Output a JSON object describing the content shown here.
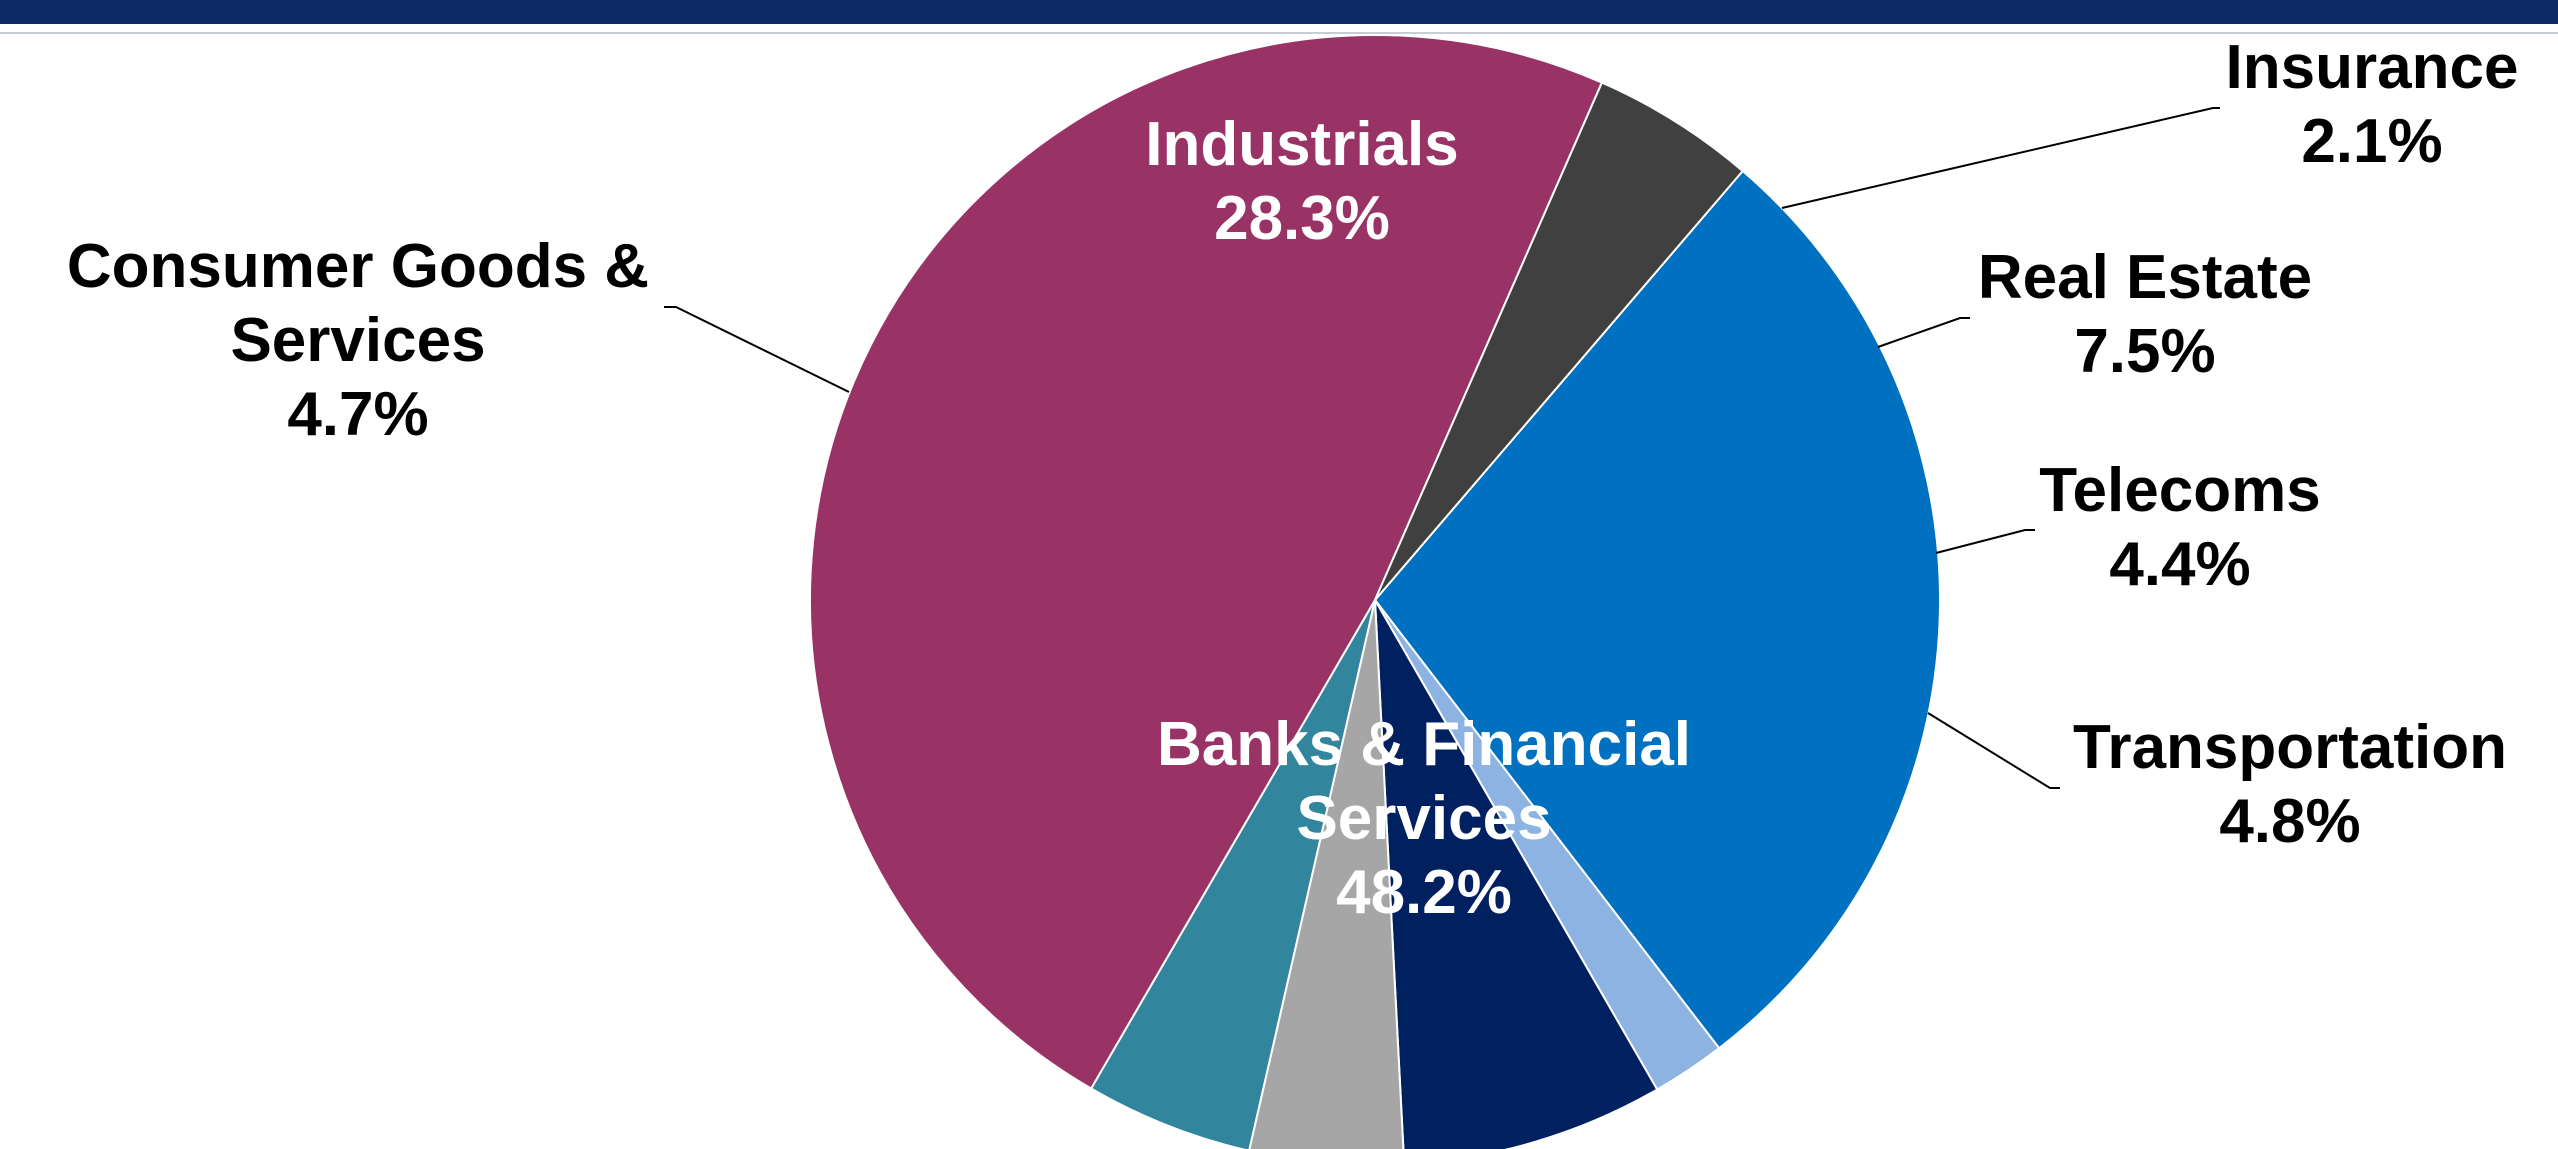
{
  "chart_data": {
    "type": "pie",
    "title": "",
    "slices": [
      {
        "label_lines": [
          "Industrials"
        ],
        "value": 28.3,
        "value_label": "28.3%",
        "color": "#0070c0"
      },
      {
        "label_lines": [
          "Insurance"
        ],
        "value": 2.1,
        "value_label": "2.1%",
        "color": "#8db3e2"
      },
      {
        "label_lines": [
          "Real Estate"
        ],
        "value": 7.5,
        "value_label": "7.5%",
        "color": "#002060"
      },
      {
        "label_lines": [
          "Telecoms"
        ],
        "value": 4.4,
        "value_label": "4.4%",
        "color": "#a6a6a6"
      },
      {
        "label_lines": [
          "Transportation"
        ],
        "value": 4.8,
        "value_label": "4.8%",
        "color": "#31859c"
      },
      {
        "label_lines": [
          "Banks & Financial",
          "Services"
        ],
        "value": 48.2,
        "value_label": "48.2%",
        "color": "#993366"
      },
      {
        "label_lines": [
          "Consumer Goods &",
          "Services"
        ],
        "value": 4.7,
        "value_label": "4.7%",
        "color": "#404040"
      }
    ],
    "legend": "none",
    "label_colors": {
      "inside": "#ffffff",
      "outside": "#000000"
    }
  }
}
